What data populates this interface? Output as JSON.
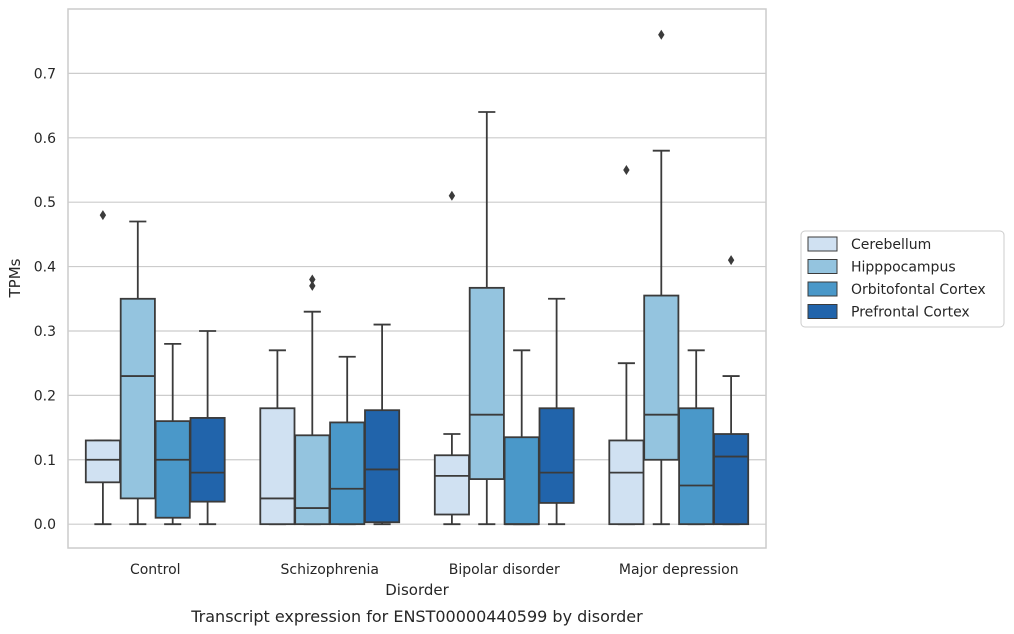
{
  "chart_data": {
    "type": "box",
    "caption": "Transcript expression for ENST00000440599 by disorder",
    "xlabel": "Disorder",
    "ylabel": "TPMs",
    "ylim": [
      -0.037,
      0.8
    ],
    "yticks": [
      0.0,
      0.1,
      0.2,
      0.3,
      0.4,
      0.5,
      0.6,
      0.7
    ],
    "ytick_labels": [
      "0.0",
      "0.1",
      "0.2",
      "0.3",
      "0.4",
      "0.5",
      "0.6",
      "0.7"
    ],
    "grid": true,
    "legend_position": "right, outside plot",
    "categories": [
      "Control",
      "Schizophrenia",
      "Bipolar disorder",
      "Major depression"
    ],
    "series": [
      {
        "name": "Cerebellum",
        "color": "#d0e1f2",
        "boxes": [
          {
            "whislo": 0.0,
            "q1": 0.065,
            "median": 0.1,
            "q3": 0.13,
            "whishi": 0.13,
            "fliers": [
              0.48
            ]
          },
          {
            "whislo": 0.0,
            "q1": 0.0,
            "median": 0.04,
            "q3": 0.18,
            "whishi": 0.27,
            "fliers": []
          },
          {
            "whislo": 0.0,
            "q1": 0.015,
            "median": 0.075,
            "q3": 0.107,
            "whishi": 0.14,
            "fliers": [
              0.51
            ]
          },
          {
            "whislo": 0.0,
            "q1": 0.0,
            "median": 0.08,
            "q3": 0.13,
            "whishi": 0.25,
            "fliers": [
              0.55
            ]
          }
        ]
      },
      {
        "name": "Hipppocampus",
        "color": "#94c4df",
        "boxes": [
          {
            "whislo": 0.0,
            "q1": 0.04,
            "median": 0.23,
            "q3": 0.35,
            "whishi": 0.47,
            "fliers": []
          },
          {
            "whislo": 0.0,
            "q1": 0.0,
            "median": 0.025,
            "q3": 0.138,
            "whishi": 0.33,
            "fliers": [
              0.38,
              0.37
            ]
          },
          {
            "whislo": 0.0,
            "q1": 0.07,
            "median": 0.17,
            "q3": 0.367,
            "whishi": 0.64,
            "fliers": []
          },
          {
            "whislo": 0.0,
            "q1": 0.1,
            "median": 0.17,
            "q3": 0.355,
            "whishi": 0.58,
            "fliers": [
              0.76
            ]
          }
        ]
      },
      {
        "name": "Orbitofontal Cortex",
        "color": "#4a98c9",
        "boxes": [
          {
            "whislo": 0.0,
            "q1": 0.01,
            "median": 0.1,
            "q3": 0.16,
            "whishi": 0.28,
            "fliers": []
          },
          {
            "whislo": 0.0,
            "q1": 0.0,
            "median": 0.055,
            "q3": 0.158,
            "whishi": 0.26,
            "fliers": []
          },
          {
            "whislo": 0.0,
            "q1": 0.0,
            "median": 0.0,
            "q3": 0.135,
            "whishi": 0.27,
            "fliers": []
          },
          {
            "whislo": 0.0,
            "q1": 0.0,
            "median": 0.06,
            "q3": 0.18,
            "whishi": 0.27,
            "fliers": []
          }
        ]
      },
      {
        "name": "Prefrontal Cortex",
        "color": "#2164ab",
        "boxes": [
          {
            "whislo": 0.0,
            "q1": 0.035,
            "median": 0.08,
            "q3": 0.165,
            "whishi": 0.3,
            "fliers": []
          },
          {
            "whislo": 0.0,
            "q1": 0.003,
            "median": 0.085,
            "q3": 0.177,
            "whishi": 0.31,
            "fliers": []
          },
          {
            "whislo": 0.0,
            "q1": 0.033,
            "median": 0.08,
            "q3": 0.18,
            "whishi": 0.35,
            "fliers": []
          },
          {
            "whislo": 0.0,
            "q1": 0.0,
            "median": 0.105,
            "q3": 0.14,
            "whishi": 0.23,
            "fliers": [
              0.41
            ]
          }
        ]
      }
    ]
  }
}
